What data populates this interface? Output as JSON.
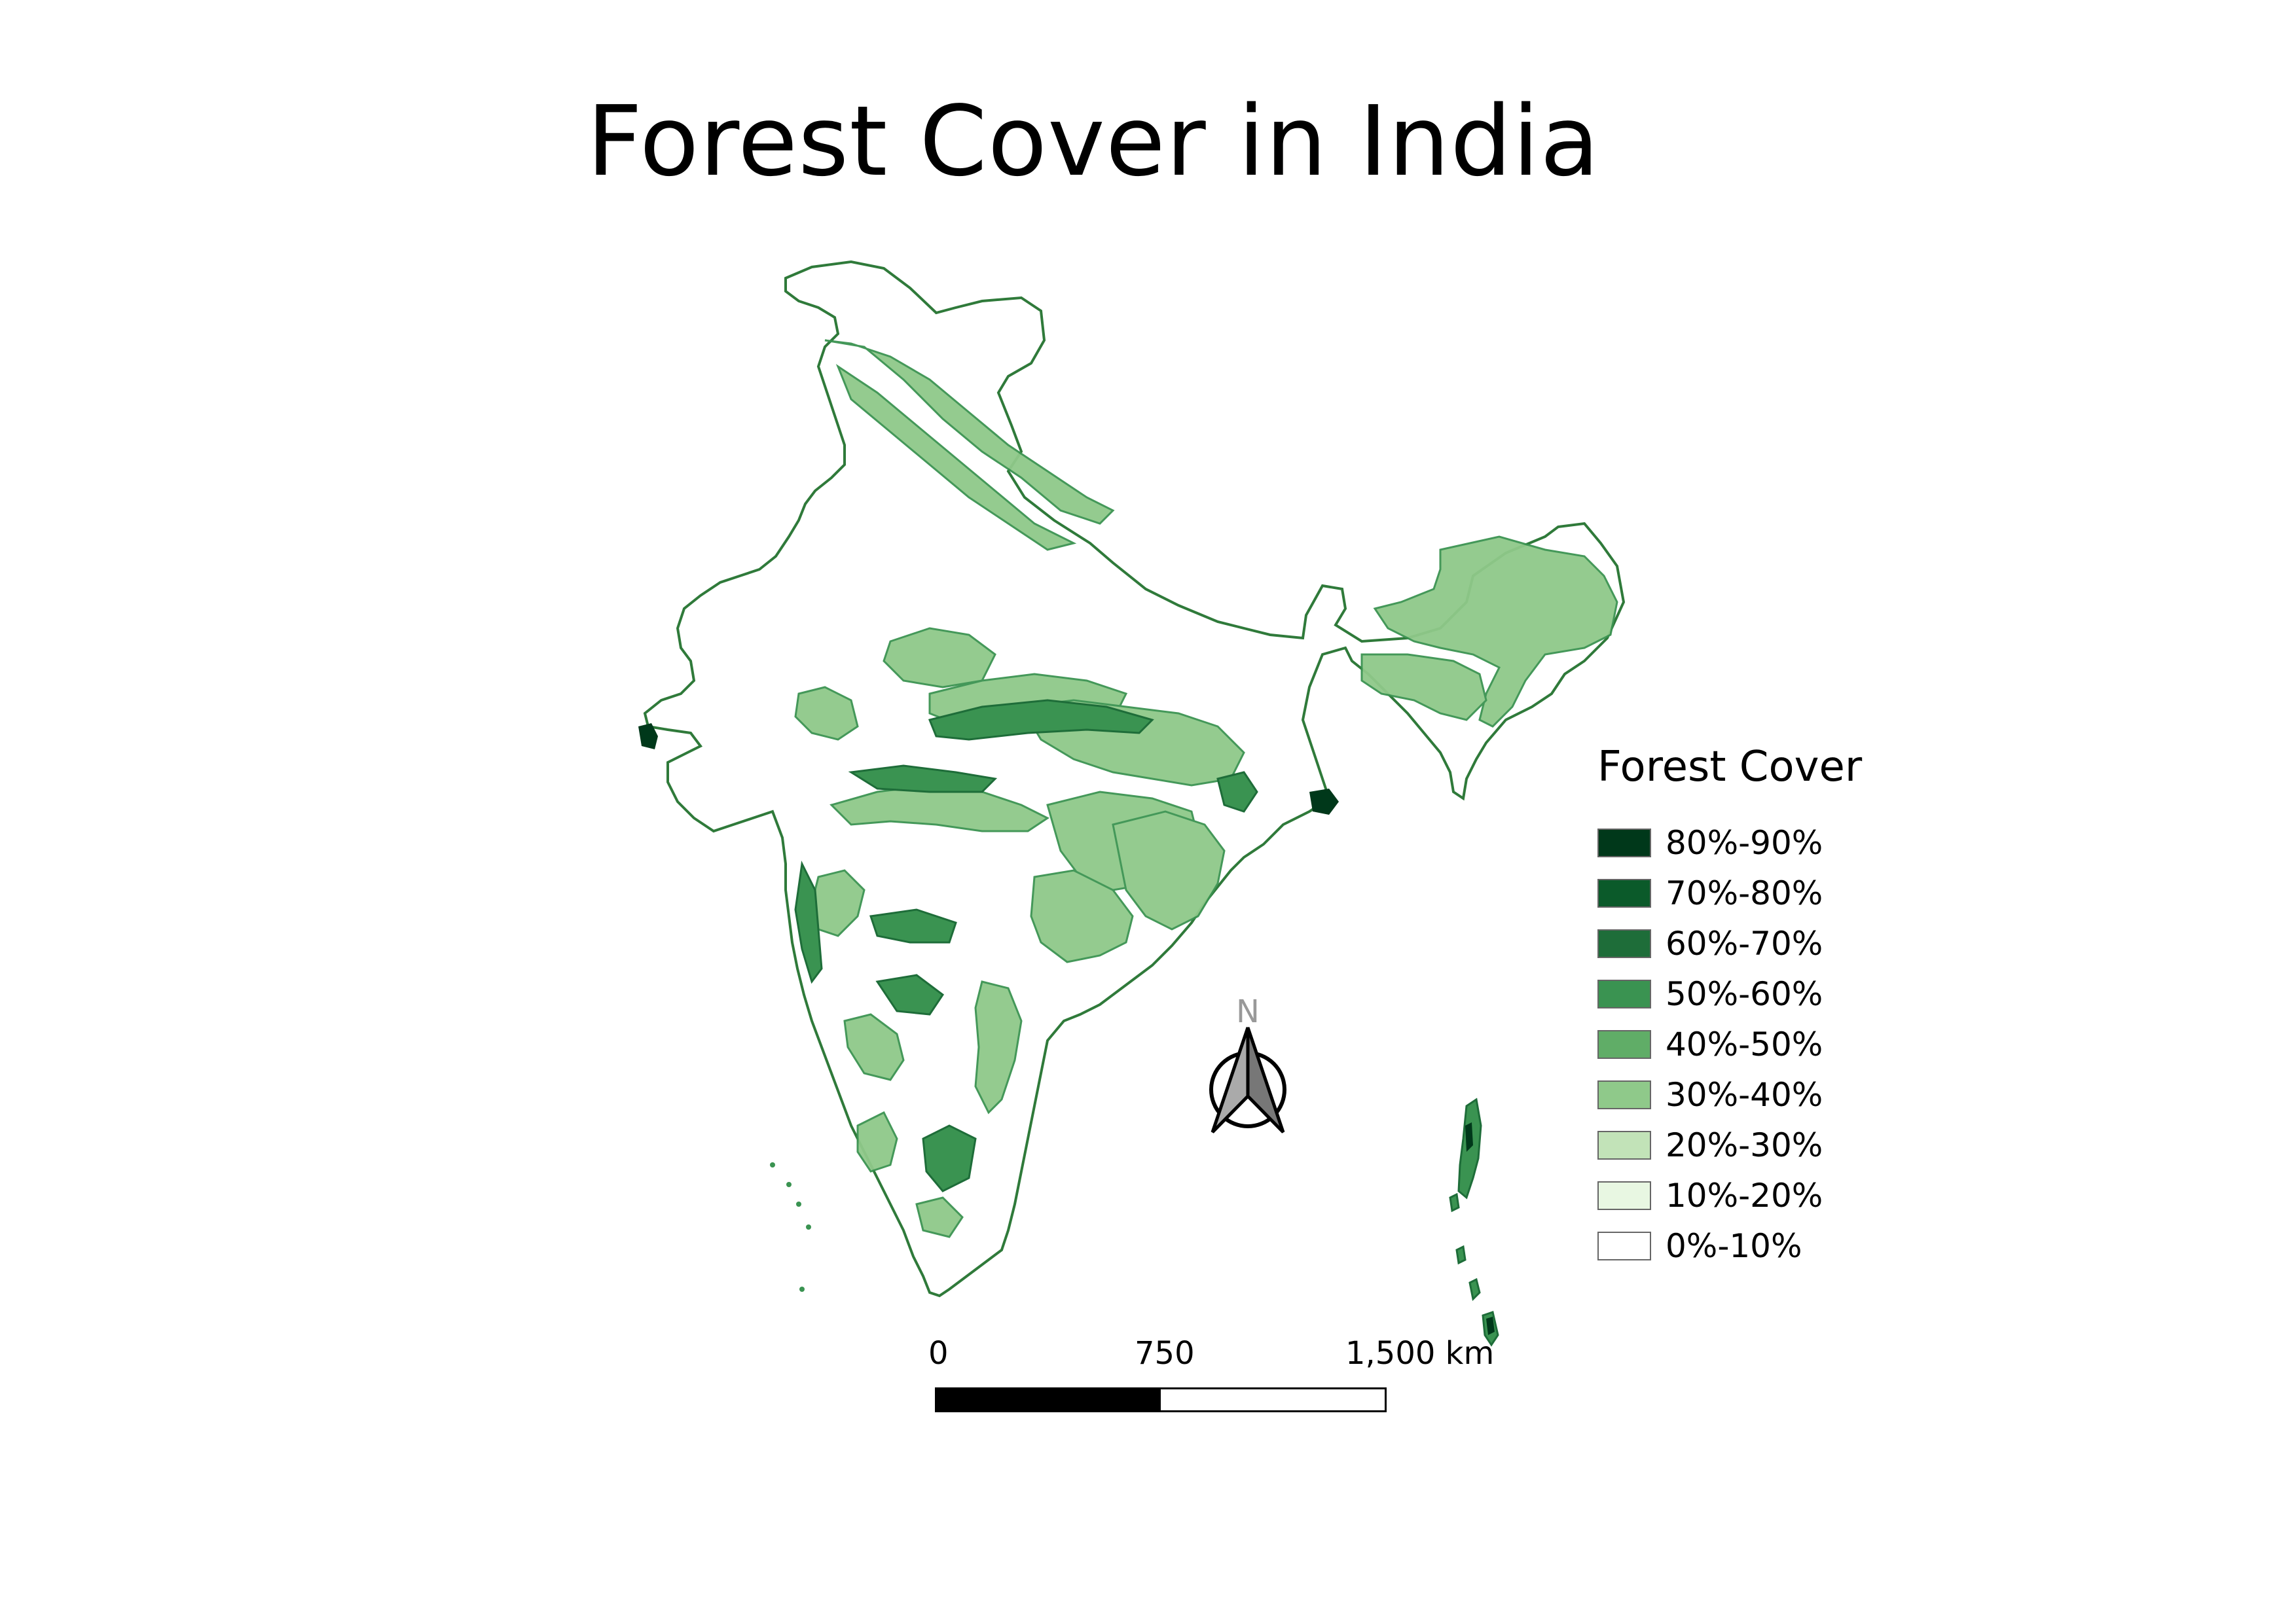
{
  "title": "Forest Cover in India",
  "legend": {
    "title": "Forest Cover",
    "items": [
      {
        "label": "80%-90%",
        "color": "#00381a"
      },
      {
        "label": "70%-80%",
        "color": "#0b5a2a"
      },
      {
        "label": "60%-70%",
        "color": "#1e6d39"
      },
      {
        "label": "50%-60%",
        "color": "#3a9351"
      },
      {
        "label": "40%-50%",
        "color": "#60ad67"
      },
      {
        "label": "30%-40%",
        "color": "#8fc98a"
      },
      {
        "label": "20%-30%",
        "color": "#c2e3b8"
      },
      {
        "label": "10%-20%",
        "color": "#e8f7e2"
      },
      {
        "label": "0%-10%",
        "color": "#ffffff"
      }
    ]
  },
  "north_arrow": {
    "label": "N"
  },
  "scale_bar": {
    "labels": [
      "0",
      "750",
      "1,500 km"
    ]
  },
  "colors": {
    "boundary": "#2f7a3a",
    "forest_medium": "#8fc98a",
    "forest_dark": "#3a9351",
    "forest_darkest": "#00381a"
  }
}
